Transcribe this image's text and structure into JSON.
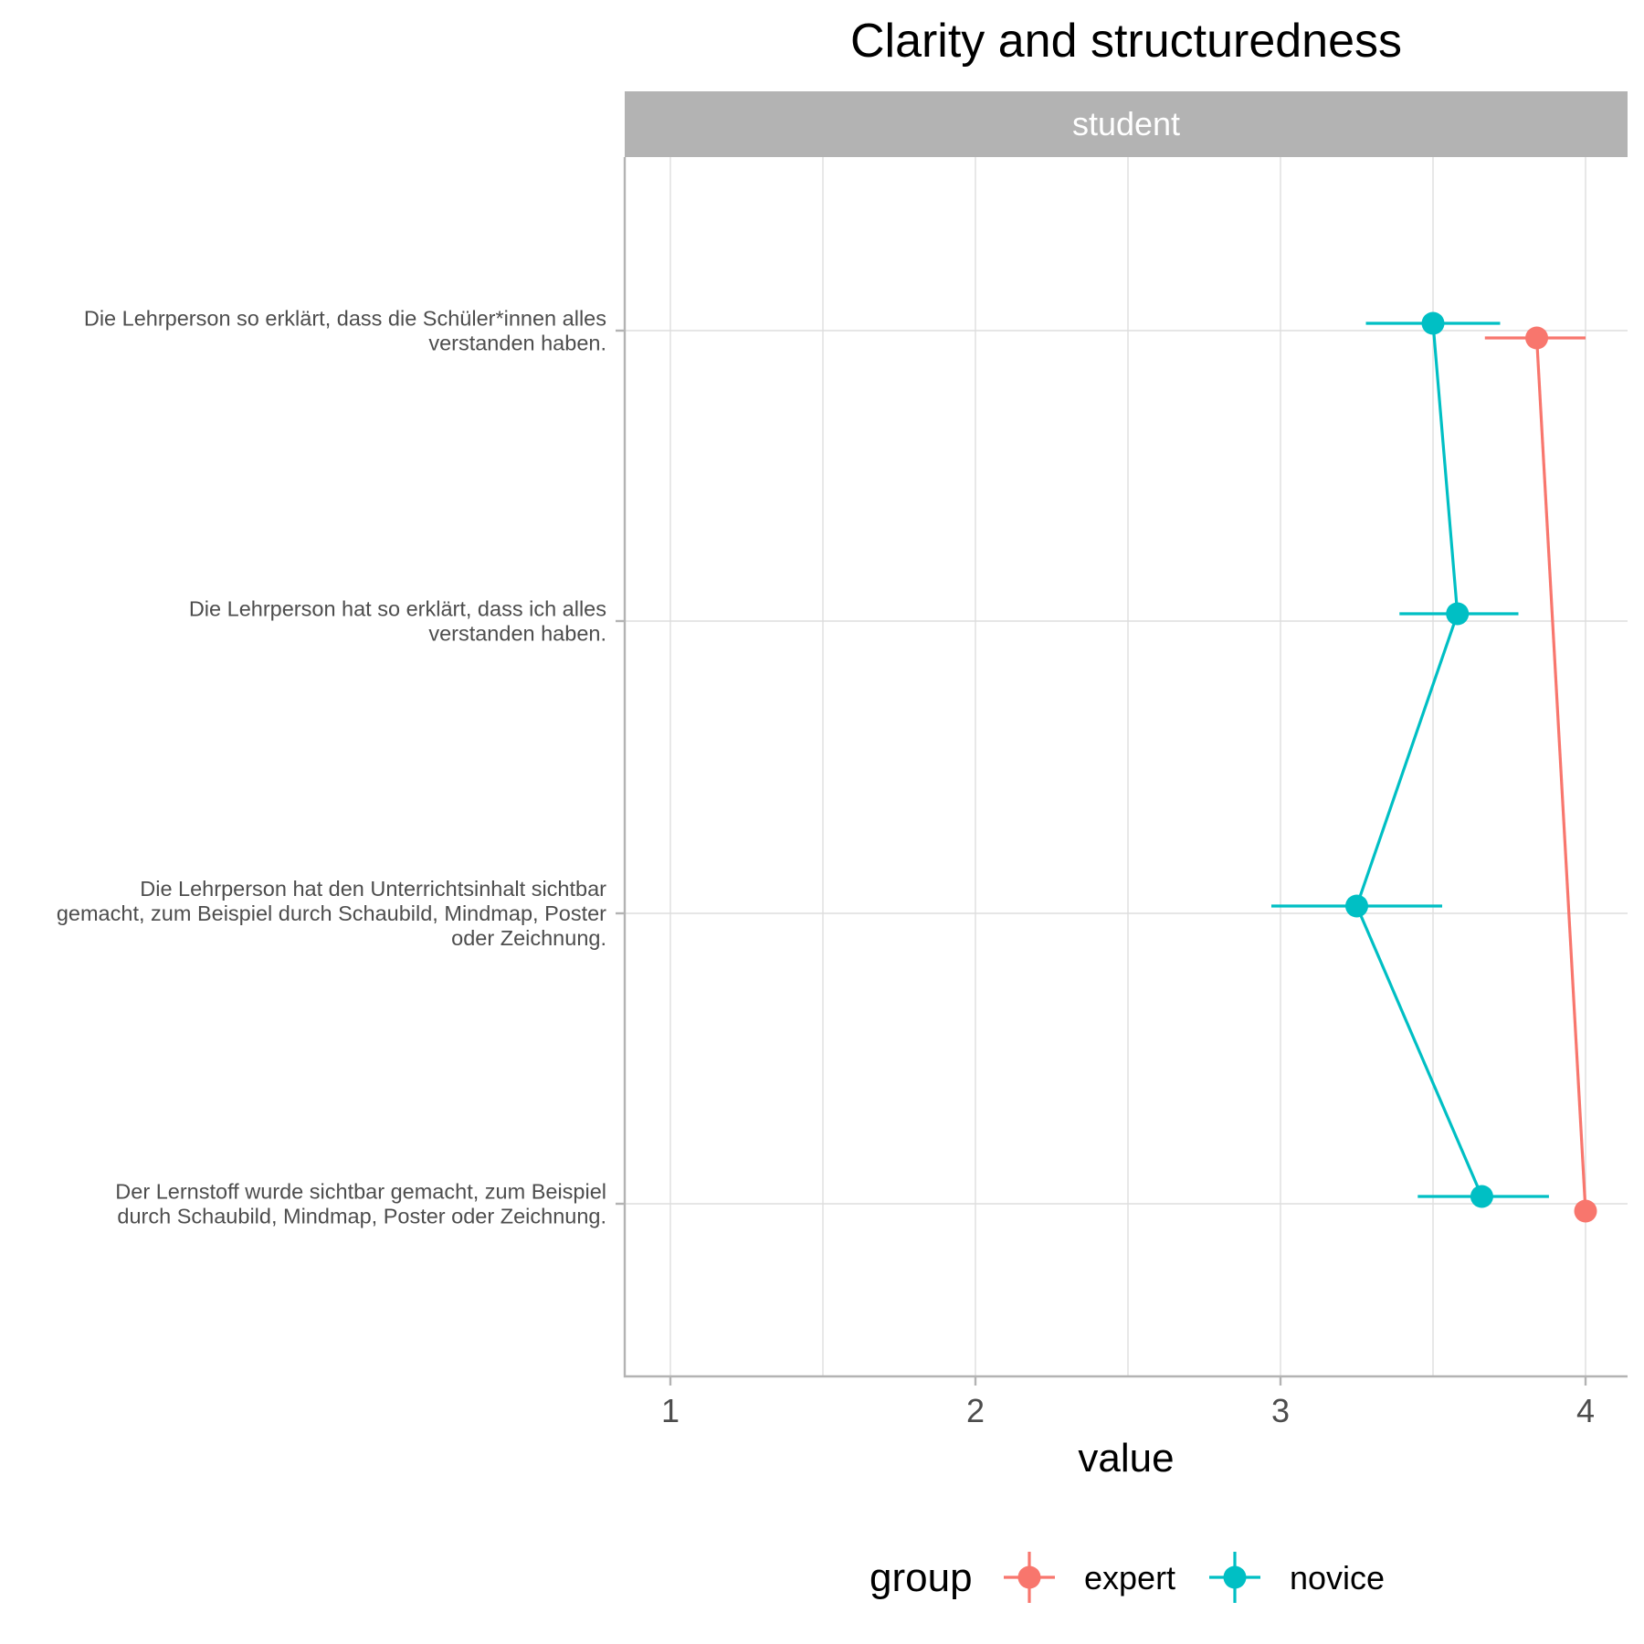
{
  "chart_data": {
    "type": "scatter",
    "title": "Clarity and structuredness",
    "facet": "student",
    "xlabel": "value",
    "ylabel": "",
    "xlim": [
      1,
      4
    ],
    "x_ticks": [
      "1",
      "2",
      "3",
      "4"
    ],
    "categories": [
      [
        "Die Lehrperson so erklärt, dass die Schüler*innen alles",
        "verstanden haben."
      ],
      [
        "Die Lehrperson hat so erklärt, dass ich alles",
        "verstanden haben."
      ],
      [
        "Die Lehrperson hat den Unterrichtsinhalt sichtbar",
        "gemacht, zum Beispiel durch Schaubild, Mindmap, Poster",
        "oder Zeichnung."
      ],
      [
        "Der Lernstoff wurde sichtbar gemacht, zum Beispiel",
        "durch Schaubild, Mindmap, Poster oder Zeichnung."
      ]
    ],
    "legend_title": "group",
    "legend_position": "bottom",
    "grid": true,
    "series": [
      {
        "name": "expert",
        "color": "#f8766d",
        "points": [
          {
            "category": 0,
            "value": 3.84,
            "lower": 3.67,
            "upper": 4.0
          },
          {
            "category": 3,
            "value": 4.0,
            "lower": 4.0,
            "upper": 4.0
          }
        ]
      },
      {
        "name": "novice",
        "color": "#00bfc4",
        "points": [
          {
            "category": 0,
            "value": 3.5,
            "lower": 3.28,
            "upper": 3.72
          },
          {
            "category": 1,
            "value": 3.58,
            "lower": 3.39,
            "upper": 3.78
          },
          {
            "category": 2,
            "value": 3.25,
            "lower": 2.97,
            "upper": 3.53
          },
          {
            "category": 3,
            "value": 3.66,
            "lower": 3.45,
            "upper": 3.88
          }
        ]
      }
    ]
  }
}
